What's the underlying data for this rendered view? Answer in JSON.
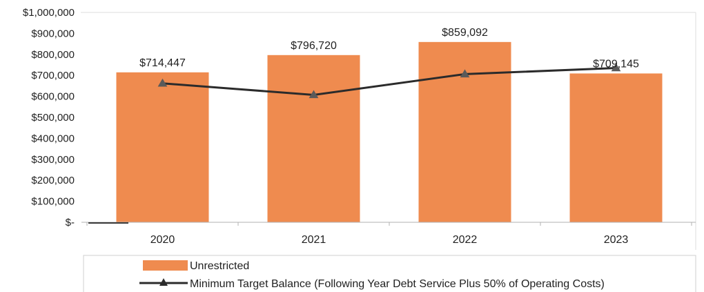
{
  "chart_data": {
    "type": "bar",
    "categories": [
      "2020",
      "2021",
      "2022",
      "2023"
    ],
    "series": [
      {
        "name": "Unrestricted",
        "kind": "bar",
        "color": "#ef8b4f",
        "values": [
          714447,
          796720,
          859092,
          709145
        ],
        "data_labels": [
          "$714,447",
          "$796,720",
          "$859,092",
          "$709,145"
        ]
      },
      {
        "name": "Minimum Target Balance (Following Year Debt Service Plus 50% of Operating Costs)",
        "kind": "line",
        "marker": "triangle",
        "color": "#2b2b2b",
        "values": [
          662000,
          607000,
          706000,
          735000
        ]
      }
    ],
    "ylim": [
      0,
      1000000
    ],
    "yticks": [
      0,
      100000,
      200000,
      300000,
      400000,
      500000,
      600000,
      700000,
      800000,
      900000,
      1000000
    ],
    "ytick_labels": [
      "$-",
      "$100,000",
      "$200,000",
      "$300,000",
      "$400,000",
      "$500,000",
      "$600,000",
      "$700,000",
      "$800,000",
      "$900,000",
      "$1,000,000"
    ],
    "grid": false,
    "legend_position": "bottom"
  }
}
